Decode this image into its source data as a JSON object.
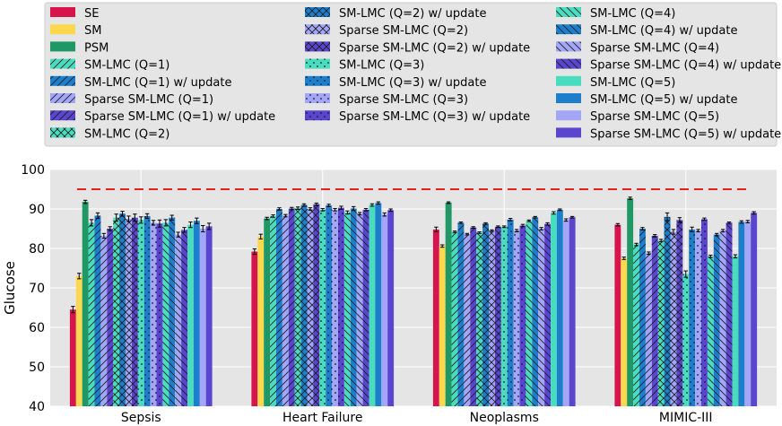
{
  "chart_data": {
    "type": "bar",
    "ylabel": "Glucose",
    "xlabel": "",
    "ylim": [
      40,
      100
    ],
    "yticks": [
      "40",
      "50",
      "60",
      "70",
      "80",
      "90",
      "100"
    ],
    "grid": true,
    "legend_position": "top",
    "reference_line": {
      "value": 95,
      "style": "dashed",
      "color": "#e8221b"
    },
    "categories": [
      "Sepsis",
      "Heart Failure",
      "Neoplasms",
      "MIMIC-III"
    ],
    "series": [
      {
        "name": "SE",
        "color": "#d6154c",
        "hatch": "",
        "values": [
          64.5,
          79.2,
          84.8,
          86.0
        ],
        "errors": [
          0.8,
          0.7,
          0.6,
          0.3
        ]
      },
      {
        "name": "SM",
        "color": "#fcd84e",
        "hatch": "",
        "values": [
          73.0,
          83.0,
          80.6,
          77.5
        ],
        "errors": [
          0.7,
          0.6,
          0.3,
          0.3
        ]
      },
      {
        "name": "PSM",
        "color": "#1f9866",
        "hatch": "",
        "values": [
          91.8,
          87.6,
          91.6,
          92.7
        ],
        "errors": [
          0.4,
          0.3,
          0.2,
          0.3
        ]
      },
      {
        "name": "SM-LMC (Q=1)",
        "color": "#4adcbe",
        "hatch": "fdiag",
        "values": [
          86.5,
          88.2,
          84.2,
          81.0
        ],
        "errors": [
          0.8,
          0.3,
          0.2,
          0.3
        ]
      },
      {
        "name": "SM-LMC (Q=1) w/ update",
        "color": "#1d7fcc",
        "hatch": "fdiag",
        "values": [
          88.3,
          90.0,
          86.5,
          85.0
        ],
        "errors": [
          0.7,
          0.3,
          0.2,
          0.3
        ]
      },
      {
        "name": "Sparse SM-LMC (Q=1)",
        "color": "#a3a6f7",
        "hatch": "fdiag",
        "values": [
          83.2,
          88.3,
          83.6,
          78.8
        ],
        "errors": [
          0.6,
          0.3,
          0.2,
          0.3
        ]
      },
      {
        "name": "Sparse SM-LMC (Q=1) w/ update",
        "color": "#5a45cf",
        "hatch": "fdiag",
        "values": [
          85.0,
          90.1,
          85.3,
          83.2
        ],
        "errors": [
          0.5,
          0.3,
          0.2,
          0.3
        ]
      },
      {
        "name": "SM-LMC (Q=2)",
        "color": "#4adcbe",
        "hatch": "cross",
        "values": [
          87.8,
          90.2,
          84.0,
          82.0
        ],
        "errors": [
          0.9,
          0.3,
          0.2,
          0.3
        ]
      },
      {
        "name": "SM-LMC (Q=2) w/ update",
        "color": "#1d7fcc",
        "hatch": "cross",
        "values": [
          88.8,
          91.0,
          86.3,
          88.0
        ],
        "errors": [
          0.6,
          0.3,
          0.2,
          1.0
        ]
      },
      {
        "name": "Sparse SM-LMC (Q=2)",
        "color": "#a3a6f7",
        "hatch": "cross",
        "values": [
          87.5,
          90.0,
          84.5,
          84.2
        ],
        "errors": [
          0.7,
          0.3,
          0.2,
          0.6
        ]
      },
      {
        "name": "Sparse SM-LMC (Q=2) w/ update",
        "color": "#5a45cf",
        "hatch": "cross",
        "values": [
          87.8,
          91.2,
          85.5,
          87.2
        ],
        "errors": [
          0.9,
          0.3,
          0.2,
          0.6
        ]
      },
      {
        "name": "SM-LMC (Q=3)",
        "color": "#4adcbe",
        "hatch": "dots",
        "values": [
          87.2,
          89.8,
          85.5,
          73.5
        ],
        "errors": [
          0.8,
          0.3,
          0.2,
          0.8
        ]
      },
      {
        "name": "SM-LMC (Q=3) w/ update",
        "color": "#1d7fcc",
        "hatch": "dots",
        "values": [
          88.2,
          90.9,
          87.3,
          84.8
        ],
        "errors": [
          0.6,
          0.3,
          0.3,
          0.6
        ]
      },
      {
        "name": "Sparse SM-LMC (Q=3)",
        "color": "#a3a6f7",
        "hatch": "dots",
        "values": [
          86.5,
          89.8,
          84.5,
          84.5
        ],
        "errors": [
          0.6,
          0.3,
          0.3,
          0.3
        ]
      },
      {
        "name": "Sparse SM-LMC (Q=3) w/ update",
        "color": "#5a45cf",
        "hatch": "dots",
        "values": [
          86.3,
          90.3,
          85.8,
          87.4
        ],
        "errors": [
          0.9,
          0.4,
          0.3,
          0.3
        ]
      },
      {
        "name": "SM-LMC (Q=4)",
        "color": "#4adcbe",
        "hatch": "bdiag",
        "values": [
          86.5,
          89.1,
          87.0,
          78.0
        ],
        "errors": [
          0.8,
          0.4,
          0.2,
          0.3
        ]
      },
      {
        "name": "SM-LMC (Q=4) w/ update",
        "color": "#1d7fcc",
        "hatch": "bdiag",
        "values": [
          87.8,
          90.1,
          87.9,
          83.5
        ],
        "errors": [
          0.6,
          0.5,
          0.2,
          0.3
        ]
      },
      {
        "name": "Sparse SM-LMC (Q=4)",
        "color": "#a3a6f7",
        "hatch": "bdiag",
        "values": [
          83.5,
          88.8,
          85.0,
          84.5
        ],
        "errors": [
          0.6,
          0.3,
          0.3,
          0.3
        ]
      },
      {
        "name": "Sparse SM-LMC (Q=4) w/ update",
        "color": "#5a45cf",
        "hatch": "bdiag",
        "values": [
          84.7,
          89.8,
          86.2,
          86.5
        ],
        "errors": [
          0.6,
          0.3,
          0.3,
          0.2
        ]
      },
      {
        "name": "SM-LMC (Q=5)",
        "color": "#4adcbe",
        "hatch": "",
        "values": [
          86.0,
          91.0,
          89.0,
          78.0
        ],
        "errors": [
          0.7,
          0.3,
          0.3,
          0.4
        ]
      },
      {
        "name": "SM-LMC (Q=5) w/ update",
        "color": "#1d7fcc",
        "hatch": "",
        "values": [
          87.0,
          91.5,
          89.8,
          86.7
        ],
        "errors": [
          0.7,
          0.3,
          0.2,
          0.3
        ]
      },
      {
        "name": "Sparse SM-LMC (Q=5)",
        "color": "#a3a6f7",
        "hatch": "",
        "values": [
          85.0,
          88.6,
          87.2,
          86.8
        ],
        "errors": [
          0.8,
          0.4,
          0.3,
          0.3
        ]
      },
      {
        "name": "Sparse SM-LMC (Q=5) w/ update",
        "color": "#5a45cf",
        "hatch": "",
        "values": [
          85.6,
          89.7,
          87.9,
          89.0
        ],
        "errors": [
          0.8,
          0.3,
          0.2,
          0.3
        ]
      }
    ]
  }
}
